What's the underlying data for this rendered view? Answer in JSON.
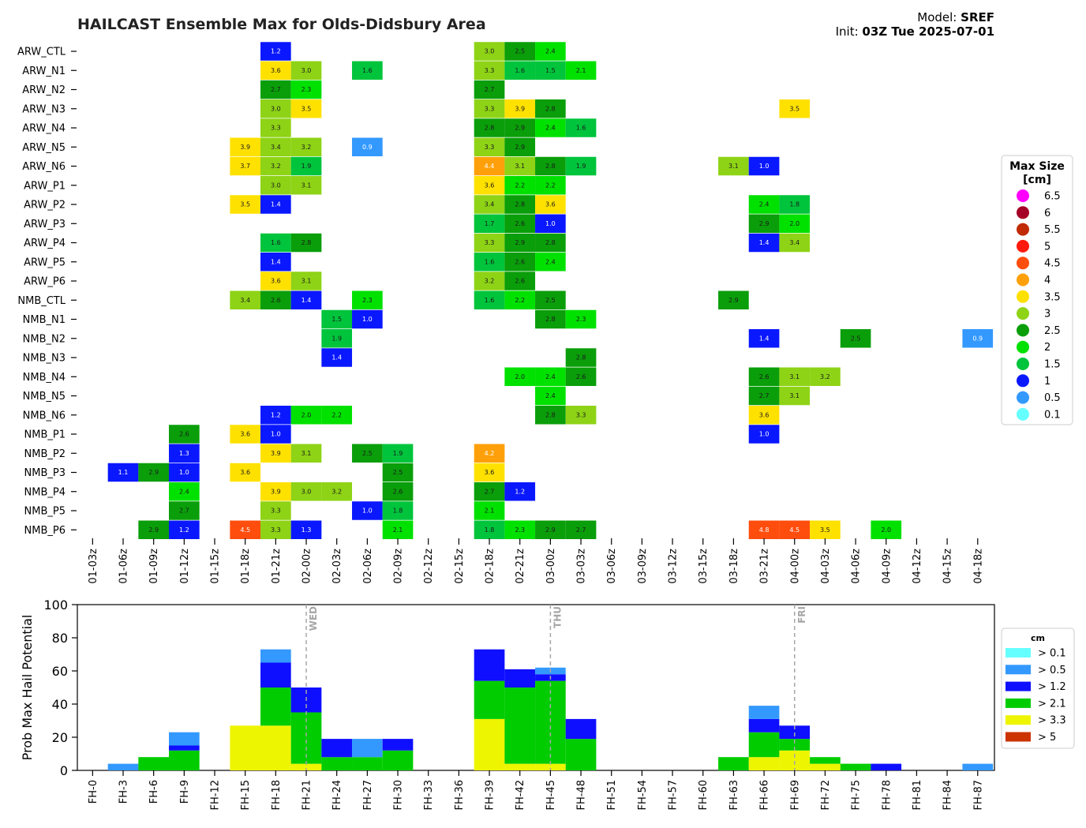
{
  "title": "HAILCAST Ensemble Max for Olds-Didsbury Area",
  "model_label": "Model:",
  "model_value": "SREF",
  "init_label": "Init:",
  "init_value": "03Z Tue 2025-07-01",
  "chart_data": [
    {
      "type": "heatmap",
      "title": "HAILCAST Ensemble Max for Olds-Didsbury Area",
      "members": [
        "ARW_CTL",
        "ARW_N1",
        "ARW_N2",
        "ARW_N3",
        "ARW_N4",
        "ARW_N5",
        "ARW_N6",
        "ARW_P1",
        "ARW_P2",
        "ARW_P3",
        "ARW_P4",
        "ARW_P5",
        "ARW_P6",
        "NMB_CTL",
        "NMB_N1",
        "NMB_N2",
        "NMB_N3",
        "NMB_N4",
        "NMB_N5",
        "NMB_N6",
        "NMB_P1",
        "NMB_P2",
        "NMB_P3",
        "NMB_P4",
        "NMB_P5",
        "NMB_P6"
      ],
      "times": [
        "01-03z",
        "01-06z",
        "01-09z",
        "01-12z",
        "01-15z",
        "01-18z",
        "01-21z",
        "02-00z",
        "02-03z",
        "02-06z",
        "02-09z",
        "02-12z",
        "02-15z",
        "02-18z",
        "02-21z",
        "03-00z",
        "03-03z",
        "03-06z",
        "03-09z",
        "03-12z",
        "03-15z",
        "03-18z",
        "03-21z",
        "04-00z",
        "04-03z",
        "04-06z",
        "04-09z",
        "04-12z",
        "04-15z",
        "04-18z"
      ],
      "cells": [
        [
          "ARW_CTL",
          "01-21z",
          1.2
        ],
        [
          "ARW_CTL",
          "02-18z",
          3.0
        ],
        [
          "ARW_CTL",
          "02-21z",
          2.5
        ],
        [
          "ARW_CTL",
          "03-00z",
          2.4
        ],
        [
          "ARW_N1",
          "01-21z",
          3.6
        ],
        [
          "ARW_N1",
          "02-00z",
          3.0
        ],
        [
          "ARW_N1",
          "02-06z",
          1.6
        ],
        [
          "ARW_N1",
          "02-18z",
          3.3
        ],
        [
          "ARW_N1",
          "02-21z",
          1.6
        ],
        [
          "ARW_N1",
          "03-00z",
          1.5
        ],
        [
          "ARW_N1",
          "03-03z",
          2.1
        ],
        [
          "ARW_N2",
          "01-21z",
          2.7
        ],
        [
          "ARW_N2",
          "02-00z",
          2.3
        ],
        [
          "ARW_N2",
          "02-18z",
          2.7
        ],
        [
          "ARW_N3",
          "01-21z",
          3.0
        ],
        [
          "ARW_N3",
          "02-00z",
          3.5
        ],
        [
          "ARW_N3",
          "02-18z",
          3.3
        ],
        [
          "ARW_N3",
          "02-21z",
          3.9
        ],
        [
          "ARW_N3",
          "03-00z",
          2.8
        ],
        [
          "ARW_N3",
          "04-00z",
          3.5
        ],
        [
          "ARW_N4",
          "01-21z",
          3.3
        ],
        [
          "ARW_N4",
          "02-18z",
          2.8
        ],
        [
          "ARW_N4",
          "02-21z",
          2.9
        ],
        [
          "ARW_N4",
          "03-00z",
          2.4
        ],
        [
          "ARW_N4",
          "03-03z",
          1.6
        ],
        [
          "ARW_N5",
          "01-18z",
          3.9
        ],
        [
          "ARW_N5",
          "01-21z",
          3.4
        ],
        [
          "ARW_N5",
          "02-00z",
          3.2
        ],
        [
          "ARW_N5",
          "02-06z",
          0.9
        ],
        [
          "ARW_N5",
          "02-18z",
          3.3
        ],
        [
          "ARW_N5",
          "02-21z",
          2.9
        ],
        [
          "ARW_N6",
          "01-18z",
          3.7
        ],
        [
          "ARW_N6",
          "01-21z",
          3.2
        ],
        [
          "ARW_N6",
          "02-00z",
          1.9
        ],
        [
          "ARW_N6",
          "02-18z",
          4.4
        ],
        [
          "ARW_N6",
          "02-21z",
          3.1
        ],
        [
          "ARW_N6",
          "03-00z",
          2.8
        ],
        [
          "ARW_N6",
          "03-03z",
          1.9
        ],
        [
          "ARW_N6",
          "03-18z",
          3.1
        ],
        [
          "ARW_N6",
          "03-21z",
          1.0
        ],
        [
          "ARW_P1",
          "01-21z",
          3.0
        ],
        [
          "ARW_P1",
          "02-00z",
          3.1
        ],
        [
          "ARW_P1",
          "02-18z",
          3.6
        ],
        [
          "ARW_P1",
          "02-21z",
          2.2
        ],
        [
          "ARW_P1",
          "03-00z",
          2.2
        ],
        [
          "ARW_P2",
          "01-18z",
          3.5
        ],
        [
          "ARW_P2",
          "01-21z",
          1.4
        ],
        [
          "ARW_P2",
          "02-18z",
          3.4
        ],
        [
          "ARW_P2",
          "02-21z",
          2.8
        ],
        [
          "ARW_P2",
          "03-00z",
          3.6
        ],
        [
          "ARW_P2",
          "03-21z",
          2.4
        ],
        [
          "ARW_P2",
          "04-00z",
          1.8
        ],
        [
          "ARW_P3",
          "02-18z",
          1.7
        ],
        [
          "ARW_P3",
          "02-21z",
          2.6
        ],
        [
          "ARW_P3",
          "03-00z",
          1.0
        ],
        [
          "ARW_P3",
          "03-21z",
          2.9
        ],
        [
          "ARW_P3",
          "04-00z",
          2.0
        ],
        [
          "ARW_P4",
          "01-21z",
          1.6
        ],
        [
          "ARW_P4",
          "02-00z",
          2.8
        ],
        [
          "ARW_P4",
          "02-18z",
          3.3
        ],
        [
          "ARW_P4",
          "02-21z",
          2.9
        ],
        [
          "ARW_P4",
          "03-00z",
          2.8
        ],
        [
          "ARW_P4",
          "03-21z",
          1.4
        ],
        [
          "ARW_P4",
          "04-00z",
          3.4
        ],
        [
          "ARW_P5",
          "01-21z",
          1.4
        ],
        [
          "ARW_P5",
          "02-18z",
          1.6
        ],
        [
          "ARW_P5",
          "02-21z",
          2.6
        ],
        [
          "ARW_P5",
          "03-00z",
          2.4
        ],
        [
          "ARW_P6",
          "01-21z",
          3.6
        ],
        [
          "ARW_P6",
          "02-00z",
          3.1
        ],
        [
          "ARW_P6",
          "02-18z",
          3.2
        ],
        [
          "ARW_P6",
          "02-21z",
          2.6
        ],
        [
          "NMB_CTL",
          "01-18z",
          3.4
        ],
        [
          "NMB_CTL",
          "01-21z",
          2.6
        ],
        [
          "NMB_CTL",
          "02-00z",
          1.4
        ],
        [
          "NMB_CTL",
          "02-06z",
          2.3
        ],
        [
          "NMB_CTL",
          "02-18z",
          1.6
        ],
        [
          "NMB_CTL",
          "02-21z",
          2.2
        ],
        [
          "NMB_CTL",
          "03-00z",
          2.5
        ],
        [
          "NMB_CTL",
          "03-18z",
          2.9
        ],
        [
          "NMB_N1",
          "02-03z",
          1.5
        ],
        [
          "NMB_N1",
          "02-06z",
          1.0
        ],
        [
          "NMB_N1",
          "03-00z",
          2.8
        ],
        [
          "NMB_N1",
          "03-03z",
          2.3
        ],
        [
          "NMB_N2",
          "02-03z",
          1.9
        ],
        [
          "NMB_N2",
          "03-21z",
          1.4
        ],
        [
          "NMB_N2",
          "04-06z",
          2.5
        ],
        [
          "NMB_N2",
          "04-18z",
          0.9
        ],
        [
          "NMB_N3",
          "02-03z",
          1.4
        ],
        [
          "NMB_N3",
          "03-03z",
          2.8
        ],
        [
          "NMB_N4",
          "02-21z",
          2.0
        ],
        [
          "NMB_N4",
          "03-00z",
          2.4
        ],
        [
          "NMB_N4",
          "03-03z",
          2.6
        ],
        [
          "NMB_N4",
          "03-21z",
          2.6
        ],
        [
          "NMB_N4",
          "04-00z",
          3.1
        ],
        [
          "NMB_N4",
          "04-03z",
          3.2
        ],
        [
          "NMB_N5",
          "03-00z",
          2.4
        ],
        [
          "NMB_N5",
          "03-21z",
          2.7
        ],
        [
          "NMB_N5",
          "04-00z",
          3.1
        ],
        [
          "NMB_N6",
          "01-21z",
          1.2
        ],
        [
          "NMB_N6",
          "02-00z",
          2.0
        ],
        [
          "NMB_N6",
          "02-03z",
          2.2
        ],
        [
          "NMB_N6",
          "03-00z",
          2.8
        ],
        [
          "NMB_N6",
          "03-03z",
          3.3
        ],
        [
          "NMB_N6",
          "03-21z",
          3.6
        ],
        [
          "NMB_P1",
          "01-12z",
          2.6
        ],
        [
          "NMB_P1",
          "01-18z",
          3.6
        ],
        [
          "NMB_P1",
          "01-21z",
          1.0
        ],
        [
          "NMB_P1",
          "03-21z",
          1.0
        ],
        [
          "NMB_P2",
          "01-12z",
          1.3
        ],
        [
          "NMB_P2",
          "01-21z",
          3.9
        ],
        [
          "NMB_P2",
          "02-00z",
          3.1
        ],
        [
          "NMB_P2",
          "02-06z",
          2.5
        ],
        [
          "NMB_P2",
          "02-09z",
          1.9
        ],
        [
          "NMB_P2",
          "02-18z",
          4.2
        ],
        [
          "NMB_P3",
          "01-06z",
          1.1
        ],
        [
          "NMB_P3",
          "01-09z",
          2.9
        ],
        [
          "NMB_P3",
          "01-12z",
          1.0
        ],
        [
          "NMB_P3",
          "01-18z",
          3.6
        ],
        [
          "NMB_P3",
          "02-09z",
          2.5
        ],
        [
          "NMB_P3",
          "02-18z",
          3.6
        ],
        [
          "NMB_P4",
          "01-12z",
          2.4
        ],
        [
          "NMB_P4",
          "01-21z",
          3.9
        ],
        [
          "NMB_P4",
          "02-00z",
          3.0
        ],
        [
          "NMB_P4",
          "02-03z",
          3.2
        ],
        [
          "NMB_P4",
          "02-09z",
          2.6
        ],
        [
          "NMB_P4",
          "02-18z",
          2.7
        ],
        [
          "NMB_P4",
          "02-21z",
          1.2
        ],
        [
          "NMB_P5",
          "01-12z",
          2.7
        ],
        [
          "NMB_P5",
          "01-21z",
          3.3
        ],
        [
          "NMB_P5",
          "02-06z",
          1.0
        ],
        [
          "NMB_P5",
          "02-09z",
          1.8
        ],
        [
          "NMB_P5",
          "02-18z",
          2.1
        ],
        [
          "NMB_P6",
          "01-09z",
          2.9
        ],
        [
          "NMB_P6",
          "01-12z",
          1.2
        ],
        [
          "NMB_P6",
          "01-18z",
          4.5
        ],
        [
          "NMB_P6",
          "01-21z",
          3.3
        ],
        [
          "NMB_P6",
          "02-00z",
          1.3
        ],
        [
          "NMB_P6",
          "02-09z",
          2.1
        ],
        [
          "NMB_P6",
          "02-18z",
          1.8
        ],
        [
          "NMB_P6",
          "02-21z",
          2.3
        ],
        [
          "NMB_P6",
          "03-00z",
          2.9
        ],
        [
          "NMB_P6",
          "03-03z",
          2.7
        ],
        [
          "NMB_P6",
          "03-21z",
          4.8
        ],
        [
          "NMB_P6",
          "04-00z",
          4.5
        ],
        [
          "NMB_P6",
          "04-03z",
          3.5
        ],
        [
          "NMB_P6",
          "04-09z",
          2.0
        ]
      ],
      "legend": {
        "title": "Max Size\n[cm]",
        "placement": "right",
        "items": [
          {
            "label": "6.5",
            "color": "#ff00ff"
          },
          {
            "label": "6",
            "color": "#a50026"
          },
          {
            "label": "5.5",
            "color": "#c02a05"
          },
          {
            "label": "5",
            "color": "#ff1a0d"
          },
          {
            "label": "4.5",
            "color": "#ff4d0d"
          },
          {
            "label": "4",
            "color": "#ffa00a"
          },
          {
            "label": "3.5",
            "color": "#ffe100"
          },
          {
            "label": "3",
            "color": "#8ed316"
          },
          {
            "label": "2.5",
            "color": "#0a9e0a"
          },
          {
            "label": "2",
            "color": "#00e100"
          },
          {
            "label": "1.5",
            "color": "#00c43c"
          },
          {
            "label": "1",
            "color": "#0a18ff"
          },
          {
            "label": "0.5",
            "color": "#3399ff"
          },
          {
            "label": "0.1",
            "color": "#66ffff"
          }
        ]
      }
    },
    {
      "type": "bar",
      "stacked": true,
      "ylabel": "Prob Max Hail Potential",
      "ylim": [
        0,
        100
      ],
      "yticks": [
        0,
        20,
        40,
        60,
        80,
        100
      ],
      "categories": [
        "FH-0",
        "FH-3",
        "FH-6",
        "FH-9",
        "FH-12",
        "FH-15",
        "FH-18",
        "FH-21",
        "FH-24",
        "FH-27",
        "FH-30",
        "FH-33",
        "FH-36",
        "FH-39",
        "FH-42",
        "FH-45",
        "FH-48",
        "FH-51",
        "FH-54",
        "FH-57",
        "FH-60",
        "FH-63",
        "FH-66",
        "FH-69",
        "FH-72",
        "FH-75",
        "FH-78",
        "FH-81",
        "FH-84",
        "FH-87"
      ],
      "series": [
        {
          "name": "> 3.3",
          "color": "#eef500",
          "values": [
            0,
            0,
            0,
            0,
            0,
            27,
            27,
            4,
            0,
            0,
            0,
            0,
            0,
            31,
            4,
            4,
            0,
            0,
            0,
            0,
            0,
            0,
            8,
            12,
            4,
            0,
            0,
            0,
            0,
            0
          ]
        },
        {
          "name": "> 2.1",
          "color": "#00cc00",
          "values": [
            0,
            0,
            8,
            12,
            0,
            0,
            23,
            31,
            8,
            8,
            12,
            0,
            0,
            23,
            46,
            50,
            19,
            0,
            0,
            0,
            0,
            8,
            15,
            7,
            4,
            4,
            0,
            0,
            0,
            0
          ]
        },
        {
          "name": "> 1.2",
          "color": "#0f0fff",
          "values": [
            0,
            0,
            0,
            3,
            0,
            0,
            15,
            15,
            11,
            0,
            7,
            0,
            0,
            19,
            11,
            4,
            12,
            0,
            0,
            0,
            0,
            0,
            8,
            8,
            0,
            0,
            4,
            0,
            0,
            0
          ]
        },
        {
          "name": "> 0.5",
          "color": "#3399ff",
          "values": [
            0,
            4,
            0,
            8,
            0,
            0,
            8,
            0,
            0,
            11,
            0,
            0,
            0,
            0,
            0,
            4,
            0,
            0,
            0,
            0,
            0,
            0,
            8,
            0,
            0,
            0,
            0,
            0,
            0,
            4
          ]
        }
      ],
      "legend": {
        "title": "cm",
        "placement": "right",
        "items": [
          {
            "label": "> 0.1",
            "color": "#66ffff"
          },
          {
            "label": "> 0.5",
            "color": "#3399ff"
          },
          {
            "label": "> 1.2",
            "color": "#0f0fff"
          },
          {
            "label": "> 2.1",
            "color": "#00cc00"
          },
          {
            "label": "> 3.3",
            "color": "#eef500"
          },
          {
            "label": "> 5",
            "color": "#cc3300"
          }
        ]
      },
      "day_markers": [
        {
          "at": "FH-21",
          "label": "WED"
        },
        {
          "at": "FH-45",
          "label": "THU"
        },
        {
          "at": "FH-69",
          "label": "FRI"
        }
      ]
    }
  ]
}
